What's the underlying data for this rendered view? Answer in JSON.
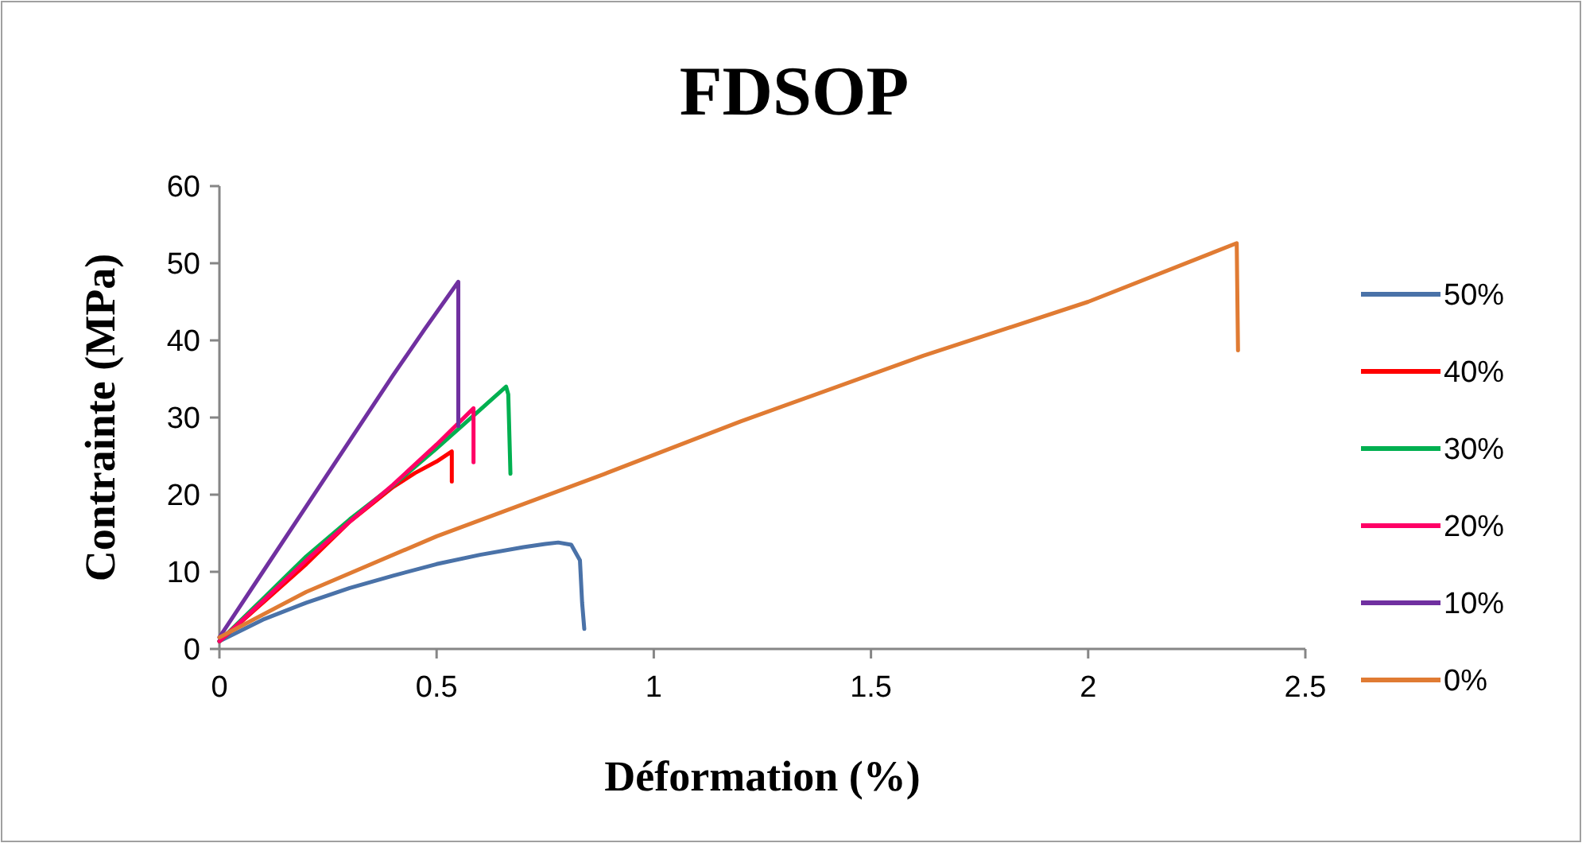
{
  "chart_data": {
    "type": "line",
    "title": "FDSOP",
    "xlabel": "Déformation (%)",
    "ylabel": "Contrainte (MPa)",
    "xlim": [
      0,
      2.5
    ],
    "ylim": [
      0,
      60
    ],
    "xticks": [
      0,
      0.5,
      1,
      1.5,
      2,
      2.5
    ],
    "yticks": [
      0,
      10,
      20,
      30,
      40,
      50,
      60
    ],
    "grid": false,
    "legend": "right",
    "marker": "none",
    "line_style": "solid",
    "series": [
      {
        "name": "50%",
        "color": "#4a72a8",
        "x": [
          0,
          0.1,
          0.2,
          0.3,
          0.4,
          0.5,
          0.6,
          0.7,
          0.75,
          0.78,
          0.81,
          0.83,
          0.835,
          0.84
        ],
        "values": [
          1,
          3.8,
          6,
          7.9,
          9.5,
          11,
          12.2,
          13.2,
          13.6,
          13.8,
          13.5,
          11.5,
          6,
          2.6
        ]
      },
      {
        "name": "40%",
        "color": "#ff0000",
        "x": [
          0,
          0.1,
          0.2,
          0.3,
          0.4,
          0.45,
          0.5,
          0.535,
          0.535
        ],
        "values": [
          1,
          6,
          11,
          16.5,
          21,
          22.8,
          24.3,
          25.6,
          21.7
        ]
      },
      {
        "name": "30%",
        "color": "#00b050",
        "x": [
          0,
          0.1,
          0.2,
          0.3,
          0.4,
          0.5,
          0.6,
          0.66,
          0.665,
          0.67
        ],
        "values": [
          1,
          6.5,
          12,
          16.8,
          21.2,
          26,
          31,
          34,
          33,
          22.7
        ]
      },
      {
        "name": "20%",
        "color": "#ff0066",
        "x": [
          0,
          0.1,
          0.2,
          0.3,
          0.4,
          0.5,
          0.585,
          0.585
        ],
        "values": [
          1,
          6.2,
          11.5,
          16.5,
          21.3,
          26.5,
          31.2,
          24.2
        ]
      },
      {
        "name": "10%",
        "color": "#7030a0",
        "x": [
          0,
          0.1,
          0.2,
          0.3,
          0.4,
          0.472,
          0.55,
          0.55
        ],
        "values": [
          1.5,
          10,
          18.5,
          27,
          35.5,
          41.4,
          47.6,
          28.9
        ]
      },
      {
        "name": "0%",
        "color": "#e07b33",
        "x": [
          0,
          0.2,
          0.5,
          0.887,
          1.2,
          1.62,
          2,
          2.342,
          2.345
        ],
        "values": [
          1.5,
          7.4,
          14.6,
          22.7,
          29.5,
          38,
          45,
          52.6,
          38.7
        ]
      }
    ]
  }
}
